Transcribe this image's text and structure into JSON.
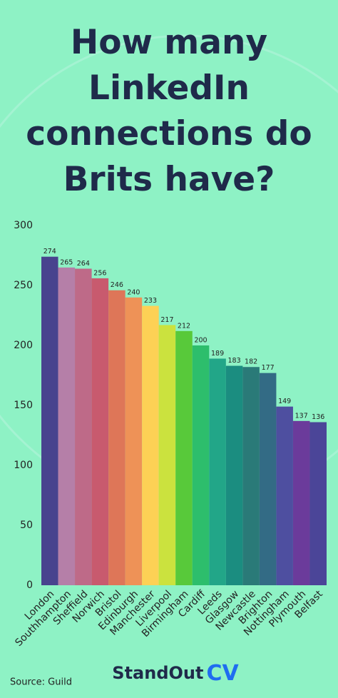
{
  "chart_data": {
    "type": "bar",
    "title": "How many LinkedIn connections do Brits have?",
    "categories": [
      "London",
      "Southhampton",
      "Sheffield",
      "Norwich",
      "Bristol",
      "Edinburgh",
      "Manchester",
      "Liverpool",
      "Birmingham",
      "Cardiff",
      "Leeds",
      "Glasgow",
      "Newcastle",
      "Brighton",
      "Nottingham",
      "Plymouth",
      "Belfast"
    ],
    "values": [
      274,
      265,
      264,
      256,
      246,
      240,
      233,
      217,
      212,
      200,
      189,
      183,
      182,
      177,
      149,
      137,
      136
    ],
    "colors": [
      "#48438e",
      "#b57fa8",
      "#be6a88",
      "#c85a6e",
      "#de7658",
      "#ee9257",
      "#fdd155",
      "#cbe23e",
      "#58c93a",
      "#2dbe6c",
      "#22a688",
      "#1b8d80",
      "#2a7a78",
      "#336b85",
      "#4e4fa0",
      "#6b3b9b",
      "#4b4598"
    ],
    "ylim": [
      0,
      300
    ],
    "yticks": [
      0,
      50,
      100,
      150,
      200,
      250,
      300
    ],
    "grid": false,
    "source": "Source: Guild",
    "brand": [
      "StandOut",
      "CV"
    ]
  }
}
